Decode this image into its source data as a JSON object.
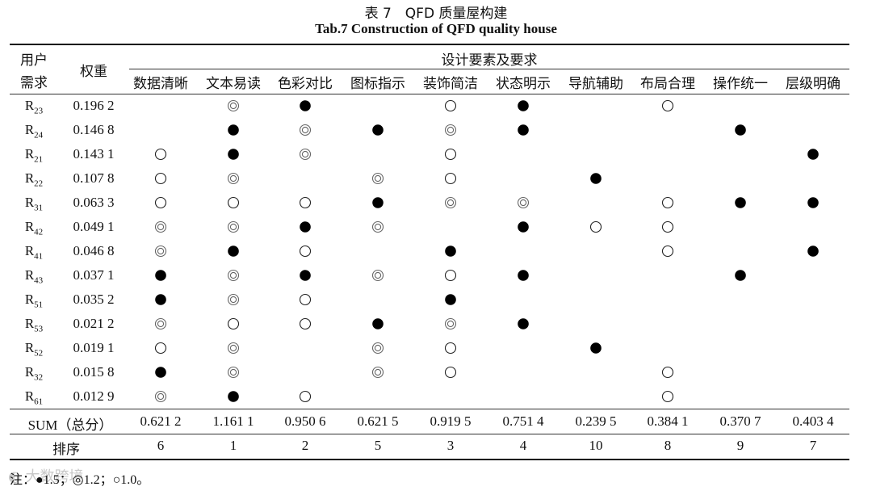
{
  "title_cn": "表 7　QFD 质量屋构建",
  "title_en": "Tab.7 Construction of QFD quality house",
  "header": {
    "user_need_l1": "用户",
    "user_need_l2": "需求",
    "weight": "权重",
    "design_group": "设计要素及要求",
    "columns": [
      "数据清晰",
      "文本易读",
      "色彩对比",
      "图标指示",
      "装饰简洁",
      "状态明示",
      "导航辅助",
      "布局合理",
      "操作统一",
      "层级明确"
    ]
  },
  "rows": [
    {
      "base": "R",
      "sub": "23",
      "weight": "0.196 2",
      "marks": [
        "",
        "D",
        "F",
        "",
        "O",
        "F",
        "",
        "O",
        "",
        ""
      ]
    },
    {
      "base": "R",
      "sub": "24",
      "weight": "0.146 8",
      "marks": [
        "",
        "F",
        "D",
        "F",
        "D",
        "F",
        "",
        "",
        "F",
        ""
      ]
    },
    {
      "base": "R",
      "sub": "21",
      "weight": "0.143 1",
      "marks": [
        "O",
        "F",
        "D",
        "",
        "O",
        "",
        "",
        "",
        "",
        "F"
      ]
    },
    {
      "base": "R",
      "sub": "22",
      "weight": "0.107 8",
      "marks": [
        "O",
        "D",
        "",
        "D",
        "O",
        "",
        "F",
        "",
        "",
        ""
      ]
    },
    {
      "base": "R",
      "sub": "31",
      "weight": "0.063 3",
      "marks": [
        "O",
        "O",
        "O",
        "F",
        "D",
        "D",
        "",
        "O",
        "F",
        "F"
      ]
    },
    {
      "base": "R",
      "sub": "42",
      "weight": "0.049 1",
      "marks": [
        "D",
        "D",
        "F",
        "D",
        "",
        "F",
        "O",
        "O",
        "",
        ""
      ]
    },
    {
      "base": "R",
      "sub": "41",
      "weight": "0.046 8",
      "marks": [
        "D",
        "F",
        "O",
        "",
        "F",
        "",
        "",
        "O",
        "",
        "F"
      ]
    },
    {
      "base": "R",
      "sub": "43",
      "weight": "0.037 1",
      "marks": [
        "F",
        "D",
        "F",
        "D",
        "O",
        "F",
        "",
        "",
        "F",
        ""
      ]
    },
    {
      "base": "R",
      "sub": "51",
      "weight": "0.035 2",
      "marks": [
        "F",
        "D",
        "O",
        "",
        "F",
        "",
        "",
        "",
        "",
        ""
      ]
    },
    {
      "base": "R",
      "sub": "53",
      "weight": "0.021 2",
      "marks": [
        "D",
        "O",
        "O",
        "F",
        "D",
        "F",
        "",
        "",
        "",
        ""
      ]
    },
    {
      "base": "R",
      "sub": "52",
      "weight": "0.019 1",
      "marks": [
        "O",
        "D",
        "",
        "D",
        "O",
        "",
        "F",
        "",
        "",
        ""
      ]
    },
    {
      "base": "R",
      "sub": "32",
      "weight": "0.015 8",
      "marks": [
        "F",
        "D",
        "",
        "D",
        "O",
        "",
        "",
        "O",
        "",
        ""
      ]
    },
    {
      "base": "R",
      "sub": "61",
      "weight": "0.012 9",
      "marks": [
        "D",
        "F",
        "O",
        "",
        "",
        "",
        "",
        "O",
        "",
        ""
      ]
    }
  ],
  "sum_label": "SUM（总分）",
  "sums": [
    "0.621 2",
    "1.161 1",
    "0.950 6",
    "0.621 5",
    "0.919 5",
    "0.751 4",
    "0.239 5",
    "0.384 1",
    "0.370 7",
    "0.403 4"
  ],
  "rank_label": "排序",
  "ranks": [
    "6",
    "1",
    "2",
    "5",
    "3",
    "4",
    "10",
    "8",
    "9",
    "7"
  ],
  "note": "注：●1.5；◎1.2；○1.0。",
  "watermark": "大数跨境"
}
